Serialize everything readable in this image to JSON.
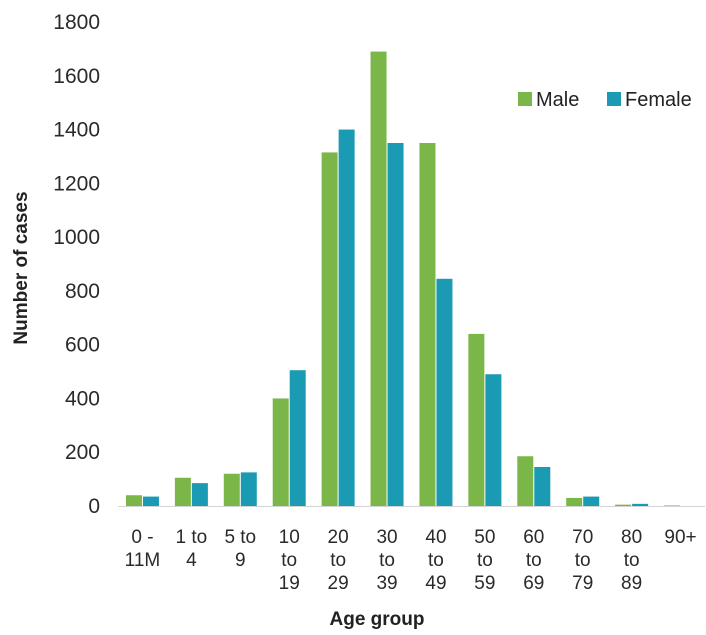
{
  "chart_data": {
    "type": "bar",
    "title": "",
    "xlabel": "Age group",
    "ylabel": "Number of cases",
    "ylim": [
      0,
      1800
    ],
    "yticks": [
      0,
      200,
      400,
      600,
      800,
      1000,
      1200,
      1400,
      1600,
      1800
    ],
    "grid": false,
    "legend_position": "top-right",
    "categories": [
      [
        "0 -",
        "11M"
      ],
      [
        "1 to",
        "4"
      ],
      [
        "5 to",
        "9"
      ],
      [
        "10",
        "to",
        "19"
      ],
      [
        "20",
        "to",
        "29"
      ],
      [
        "30",
        "to",
        "39"
      ],
      [
        "40",
        "to",
        "49"
      ],
      [
        "50",
        "to",
        "59"
      ],
      [
        "60",
        "to",
        "69"
      ],
      [
        "70",
        "to",
        "79"
      ],
      [
        "80",
        "to",
        "89"
      ],
      [
        "90+"
      ]
    ],
    "series": [
      {
        "name": "Male",
        "color": "#7ab648",
        "values": [
          40,
          105,
          120,
          400,
          1315,
          1690,
          1350,
          640,
          185,
          30,
          5,
          2
        ]
      },
      {
        "name": "Female",
        "color": "#1a9ab3",
        "values": [
          35,
          85,
          125,
          505,
          1400,
          1350,
          845,
          490,
          145,
          35,
          8,
          0
        ]
      }
    ]
  }
}
